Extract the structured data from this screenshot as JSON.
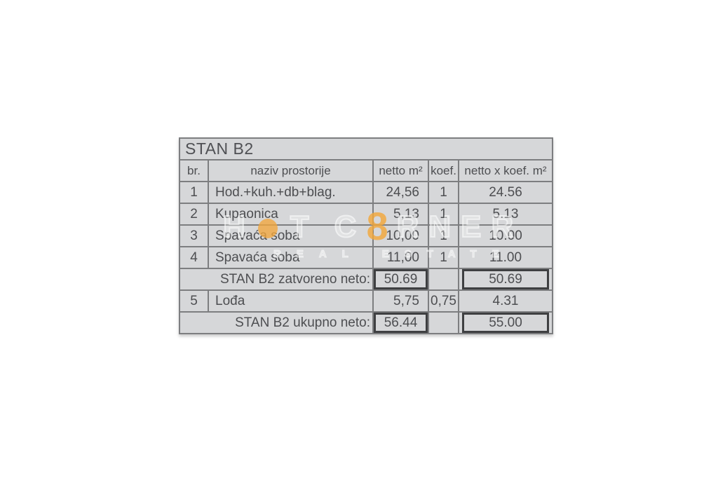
{
  "document": {
    "title": "STAN B2",
    "columns": [
      "br.",
      "naziv prostorije",
      "netto m²",
      "koef.",
      "netto x koef. m²"
    ],
    "rows": [
      {
        "br": "1",
        "naziv": "Hod.+kuh.+db+blag.",
        "netto": "24,56",
        "koef": "1",
        "netto_x_koef": "24.56"
      },
      {
        "br": "2",
        "naziv": "Kupaonica",
        "netto": "5,13",
        "koef": "1",
        "netto_x_koef": "5.13"
      },
      {
        "br": "3",
        "naziv": "Spavaća soba",
        "netto": "10,00",
        "koef": "1",
        "netto_x_koef": "10.00"
      },
      {
        "br": "4",
        "naziv": "Spavaća soba",
        "netto": "11,00",
        "koef": "1",
        "netto_x_koef": "11.00"
      },
      {
        "br": "5",
        "naziv": "Lođa",
        "netto": "5,75",
        "koef": "0,75",
        "netto_x_koef": "4.31"
      }
    ],
    "subtotal_row": {
      "label": "STAN B2 zatvoreno neto:",
      "netto": "50.69",
      "koef": "",
      "netto_x_koef": "50.69"
    },
    "total_row": {
      "label": "STAN B2 ukupno neto:",
      "netto": "56.44",
      "koef": "",
      "netto_x_koef": "55.00"
    }
  },
  "watermark": {
    "brand_h": "H",
    "brand_t": "T",
    "brand_c": "C",
    "o_glyph": "8",
    "brand_rner": "RNER",
    "tagline": "REAL ESTATE"
  },
  "colors": {
    "page_bg": "#ffffff",
    "table_bg": "#d6d7d9",
    "grid_line": "#7d7e80",
    "text": "#4d4e51",
    "emphasis_border": "#3e3f41",
    "watermark_orange": "#f2a73c"
  }
}
